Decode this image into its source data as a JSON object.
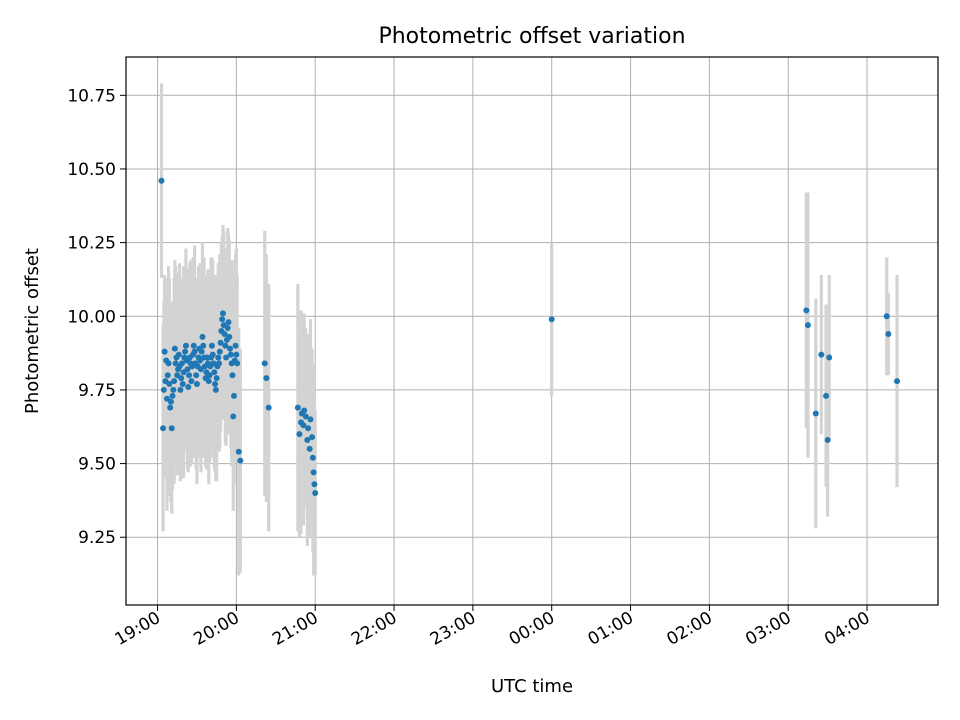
{
  "chart_data": {
    "type": "scatter",
    "title": "Photometric offset variation",
    "xlabel": "UTC time",
    "ylabel": "Photometric offset",
    "grid": true,
    "x_ticks": [
      "19:00",
      "20:00",
      "21:00",
      "22:00",
      "23:00",
      "00:00",
      "01:00",
      "02:00",
      "03:00",
      "04:00"
    ],
    "y_ticks": [
      "9.25",
      "9.50",
      "9.75",
      "10.00",
      "10.25",
      "10.50",
      "10.75"
    ],
    "xlim_hours": [
      18.6,
      28.9
    ],
    "ylim": [
      9.02,
      10.88
    ],
    "colors": {
      "points": "#1f77b4",
      "errorbars": "#d3d3d3",
      "grid": "#b0b0b0",
      "axes": "#000000"
    },
    "series": [
      {
        "x_hours": [
          19.05,
          19.07,
          19.08,
          19.09,
          19.1,
          19.11,
          19.12,
          19.13,
          19.14,
          19.15,
          19.16,
          19.17,
          19.18,
          19.19,
          19.2,
          19.21,
          19.22,
          19.23,
          19.24,
          19.25,
          19.26,
          19.27,
          19.28,
          19.29,
          19.3,
          19.31,
          19.32,
          19.33,
          19.34,
          19.35,
          19.36,
          19.37,
          19.38,
          19.39,
          19.4,
          19.41,
          19.42,
          19.43,
          19.44,
          19.45,
          19.46,
          19.47,
          19.48,
          19.49,
          19.5,
          19.51,
          19.52,
          19.53,
          19.54,
          19.55,
          19.56,
          19.57,
          19.58,
          19.59,
          19.6,
          19.61,
          19.62,
          19.63,
          19.64,
          19.65,
          19.66,
          19.67,
          19.68,
          19.69,
          19.7,
          19.71,
          19.72,
          19.73,
          19.74,
          19.75,
          19.76,
          19.77,
          19.78,
          19.79,
          19.8,
          19.81,
          19.82,
          19.83,
          19.84,
          19.85,
          19.86,
          19.87,
          19.88,
          19.89,
          19.9,
          19.91,
          19.92,
          19.93,
          19.94,
          19.95,
          19.96,
          19.97,
          19.98,
          19.99,
          20.0,
          20.01,
          20.03,
          20.05,
          20.36,
          20.38,
          20.41,
          20.78,
          20.8,
          20.82,
          20.83,
          20.85,
          20.86,
          20.88,
          20.9,
          20.91,
          20.93,
          20.94,
          20.96,
          20.97,
          20.98,
          20.99,
          21.0,
          24.0,
          27.23,
          27.25,
          27.35,
          27.42,
          27.48,
          27.5,
          27.52,
          28.25,
          28.27,
          28.38
        ],
        "y": [
          10.46,
          9.62,
          9.75,
          9.88,
          9.78,
          9.85,
          9.72,
          9.8,
          9.84,
          9.77,
          9.69,
          9.71,
          9.62,
          9.73,
          9.75,
          9.78,
          9.89,
          9.84,
          9.86,
          9.8,
          9.82,
          9.87,
          9.83,
          9.75,
          9.79,
          9.84,
          9.77,
          9.81,
          9.86,
          9.88,
          9.9,
          9.85,
          9.82,
          9.76,
          9.8,
          9.86,
          9.84,
          9.78,
          9.83,
          9.87,
          9.9,
          9.88,
          9.84,
          9.8,
          9.77,
          9.83,
          9.86,
          9.89,
          9.85,
          9.82,
          9.88,
          9.93,
          9.9,
          9.86,
          9.83,
          9.79,
          9.81,
          9.86,
          9.84,
          9.78,
          9.8,
          9.83,
          9.86,
          9.9,
          9.87,
          9.84,
          9.81,
          9.77,
          9.75,
          9.79,
          9.83,
          9.86,
          9.84,
          9.88,
          9.91,
          9.95,
          9.99,
          10.01,
          9.97,
          9.94,
          9.9,
          9.86,
          9.92,
          9.96,
          9.98,
          9.93,
          9.89,
          9.87,
          9.84,
          9.8,
          9.66,
          9.73,
          9.85,
          9.9,
          9.87,
          9.84,
          9.54,
          9.51,
          9.84,
          9.79,
          9.69,
          9.69,
          9.6,
          9.64,
          9.67,
          9.63,
          9.68,
          9.66,
          9.58,
          9.62,
          9.55,
          9.65,
          9.59,
          9.52,
          9.47,
          9.43,
          9.4,
          9.99,
          10.02,
          9.97,
          9.67,
          9.87,
          9.73,
          9.58,
          9.86,
          10.0,
          9.94,
          9.78
        ],
        "err": [
          0.33,
          0.35,
          0.3,
          0.26,
          0.32,
          0.28,
          0.38,
          0.3,
          0.33,
          0.36,
          0.3,
          0.34,
          0.29,
          0.32,
          0.3,
          0.35,
          0.3,
          0.33,
          0.27,
          0.34,
          0.3,
          0.28,
          0.35,
          0.31,
          0.33,
          0.29,
          0.32,
          0.36,
          0.3,
          0.28,
          0.33,
          0.31,
          0.34,
          0.29,
          0.3,
          0.32,
          0.35,
          0.28,
          0.31,
          0.33,
          0.3,
          0.36,
          0.29,
          0.32,
          0.34,
          0.3,
          0.31,
          0.28,
          0.33,
          0.35,
          0.3,
          0.32,
          0.29,
          0.34,
          0.31,
          0.3,
          0.33,
          0.28,
          0.32,
          0.35,
          0.3,
          0.31,
          0.34,
          0.3,
          0.32,
          0.29,
          0.33,
          0.3,
          0.31,
          0.35,
          0.28,
          0.32,
          0.3,
          0.33,
          0.3,
          0.3,
          0.28,
          0.3,
          0.32,
          0.29,
          0.33,
          0.3,
          0.31,
          0.34,
          0.3,
          0.33,
          0.28,
          0.32,
          0.35,
          0.3,
          0.32,
          0.3,
          0.34,
          0.31,
          0.36,
          0.3,
          0.42,
          0.38,
          0.45,
          0.42,
          0.42,
          0.42,
          0.35,
          0.38,
          0.3,
          0.34,
          0.33,
          0.3,
          0.36,
          0.32,
          0.3,
          0.34,
          0.3,
          0.32,
          0.35,
          0.3,
          0.28,
          0.26,
          0.4,
          0.45,
          0.39,
          0.27,
          0.31,
          0.26,
          0.28,
          0.2,
          0.14,
          0.36
        ]
      }
    ]
  }
}
